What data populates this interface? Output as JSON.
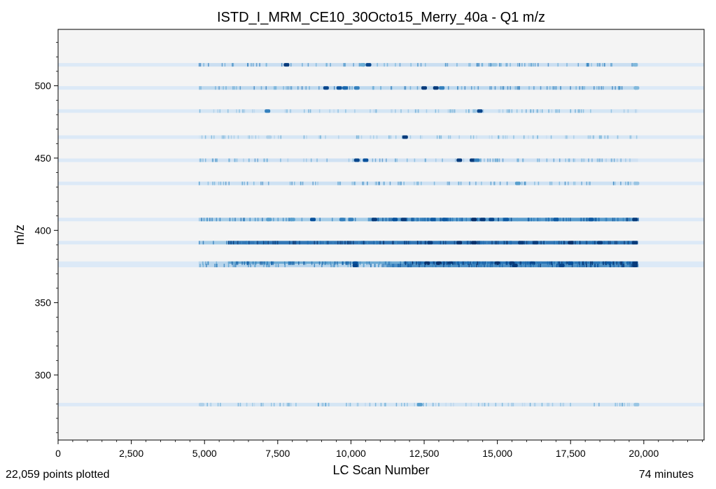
{
  "chart_data": {
    "type": "scatter",
    "title": "ISTD_I_MRM_CE10_30Octo15_Merry_40a - Q1 m/z",
    "xlabel": "LC Scan Number",
    "ylabel": "m/z",
    "xlim": [
      0,
      22059
    ],
    "ylim": [
      255,
      539
    ],
    "x_ticks": [
      0,
      2500,
      5000,
      7500,
      10000,
      12500,
      15000,
      17500,
      20000
    ],
    "x_tick_labels": [
      "0",
      "2,500",
      "5,000",
      "7,500",
      "10,000",
      "12,500",
      "15,000",
      "17,500",
      "20,000"
    ],
    "y_ticks": [
      300,
      350,
      400,
      450,
      500
    ],
    "y_tick_labels": [
      "300",
      "350",
      "400",
      "450",
      "500"
    ],
    "grid": false,
    "background": "#f4f4f4",
    "colormap": "Blues",
    "channels": [
      {
        "mz": 514.5,
        "dense": [
          [
            4800,
            19800,
            0.25
          ]
        ],
        "clusters": [
          [
            7800,
            0.95
          ],
          [
            10600,
            0.9
          ],
          [
            10400,
            0.45
          ],
          [
            14900,
            0.35
          ],
          [
            19700,
            0.4
          ]
        ]
      },
      {
        "mz": 498.5,
        "dense": [
          [
            4800,
            19800,
            0.28
          ]
        ],
        "clusters": [
          [
            9150,
            0.9
          ],
          [
            9600,
            0.85
          ],
          [
            9800,
            0.7
          ],
          [
            10200,
            0.6
          ],
          [
            12500,
            0.95
          ],
          [
            12900,
            0.95
          ],
          [
            13100,
            0.6
          ],
          [
            19750,
            0.4
          ]
        ]
      },
      {
        "mz": 482.5,
        "dense": [
          [
            4800,
            19800,
            0.12
          ]
        ],
        "clusters": [
          [
            7150,
            0.6
          ],
          [
            14400,
            0.9
          ]
        ]
      },
      {
        "mz": 464.5,
        "dense": [
          [
            4800,
            19800,
            0.1
          ]
        ],
        "clusters": [
          [
            7200,
            0.3
          ],
          [
            11850,
            0.95
          ]
        ]
      },
      {
        "mz": 448.5,
        "dense": [
          [
            4800,
            19800,
            0.18
          ]
        ],
        "clusters": [
          [
            10200,
            0.9
          ],
          [
            10500,
            0.85
          ],
          [
            13700,
            0.95
          ],
          [
            14150,
            0.95
          ],
          [
            14300,
            0.6
          ]
        ]
      },
      {
        "mz": 432.5,
        "dense": [
          [
            4800,
            19800,
            0.2
          ]
        ],
        "clusters": [
          [
            15700,
            0.5
          ],
          [
            19750,
            0.35
          ]
        ]
      },
      {
        "mz": 407.5,
        "dense": [
          [
            4800,
            19800,
            0.35
          ],
          [
            10600,
            19800,
            0.55
          ]
        ],
        "clusters": [
          [
            7200,
            0.5
          ],
          [
            8000,
            0.5
          ],
          [
            8700,
            0.85
          ],
          [
            9700,
            0.6
          ],
          [
            10000,
            0.6
          ],
          [
            10800,
            0.95
          ],
          [
            11500,
            0.85
          ],
          [
            11800,
            0.95
          ],
          [
            12800,
            0.8
          ],
          [
            13200,
            0.8
          ],
          [
            14200,
            1.0
          ],
          [
            14500,
            0.95
          ],
          [
            14800,
            0.9
          ],
          [
            15300,
            0.8
          ],
          [
            17000,
            0.8
          ],
          [
            18200,
            0.8
          ],
          [
            19700,
            0.95
          ]
        ]
      },
      {
        "mz": 391.5,
        "dense": [
          [
            4800,
            19800,
            0.35
          ],
          [
            5800,
            19800,
            0.75
          ]
        ],
        "clusters": [
          [
            12700,
            0.95
          ],
          [
            13700,
            1.0
          ],
          [
            14200,
            1.0
          ],
          [
            15800,
            0.95
          ],
          [
            16300,
            0.95
          ],
          [
            17500,
            1.0
          ],
          [
            18500,
            0.95
          ],
          [
            19700,
            0.95
          ]
        ]
      },
      {
        "mz": 377.3,
        "dense": [
          [
            4800,
            19800,
            0.3
          ],
          [
            5800,
            19800,
            0.5
          ],
          [
            11800,
            19800,
            0.7
          ]
        ],
        "clusters": [
          [
            10150,
            0.85
          ],
          [
            12600,
            1.0
          ],
          [
            13000,
            1.0
          ],
          [
            13400,
            0.95
          ],
          [
            15000,
            1.0
          ],
          [
            15500,
            0.95
          ],
          [
            16200,
            0.9
          ],
          [
            17500,
            0.85
          ],
          [
            18800,
            0.8
          ],
          [
            19700,
            0.95
          ]
        ]
      },
      {
        "mz": 375.7,
        "dense": [
          [
            4800,
            19800,
            0.3
          ],
          [
            11200,
            19800,
            0.6
          ]
        ],
        "clusters": [
          [
            10150,
            0.9
          ],
          [
            15600,
            0.95
          ],
          [
            17200,
            0.9
          ],
          [
            19700,
            0.95
          ]
        ]
      },
      {
        "mz": 279.5,
        "dense": [
          [
            4800,
            19800,
            0.12
          ]
        ],
        "clusters": [
          [
            4900,
            0.3
          ],
          [
            12350,
            0.5
          ],
          [
            19750,
            0.35
          ]
        ]
      }
    ]
  },
  "footer": {
    "points_text": "22,059 points plotted",
    "duration_text": "74 minutes"
  }
}
